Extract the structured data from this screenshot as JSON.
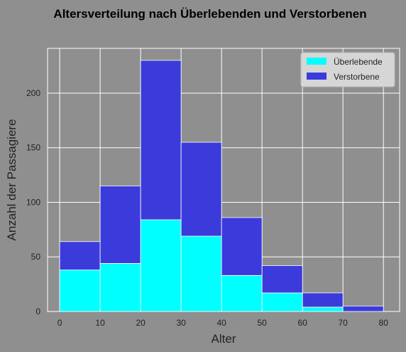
{
  "chart_data": {
    "type": "bar",
    "stacked": true,
    "title": "Altersverteilung nach Überlebenden und Verstorbenen",
    "xlabel": "Alter",
    "ylabel": "Anzahl der Passagiere",
    "bin_edges": [
      0,
      10,
      20,
      30,
      40,
      50,
      60,
      70,
      80
    ],
    "series": [
      {
        "name": "Überlebende",
        "color": "#00ffff",
        "values": [
          38,
          44,
          84,
          69,
          33,
          17,
          4,
          0
        ]
      },
      {
        "name": "Verstorbene",
        "color": "#3b3bdb",
        "values": [
          26,
          71,
          146,
          86,
          53,
          25,
          13,
          5
        ]
      }
    ],
    "xlim": [
      -3,
      84
    ],
    "ylim": [
      0,
      241
    ],
    "xticks": [
      0,
      10,
      20,
      30,
      40,
      50,
      60,
      70,
      80
    ],
    "yticks": [
      0,
      50,
      100,
      150,
      200
    ],
    "grid": true,
    "legend_position": "top-right",
    "background_color": "#8f8f8f"
  }
}
